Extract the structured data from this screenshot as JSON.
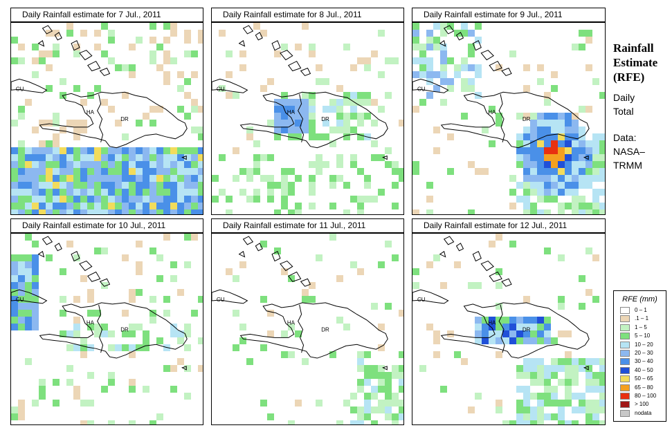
{
  "sidebar": {
    "title_lines": [
      "Rainfall",
      "Estimate",
      "(RFE)"
    ],
    "subtitle_lines": [
      "Daily",
      "Total"
    ],
    "source_lines": [
      "Data:",
      "NASA–",
      "TRMM"
    ]
  },
  "legend": {
    "title": "RFE (mm)",
    "items": [
      {
        "label": "0 – 1",
        "color": "#ffffff"
      },
      {
        "label": ".1 – 1",
        "color": "#ecd6b6"
      },
      {
        "label": "1 – 5",
        "color": "#c2f2c2"
      },
      {
        "label": "5 – 10",
        "color": "#7ee07e"
      },
      {
        "label": "10 – 20",
        "color": "#b6e4f4"
      },
      {
        "label": "20 – 30",
        "color": "#8cb8f0"
      },
      {
        "label": "30 – 40",
        "color": "#4a90e8"
      },
      {
        "label": "40 – 50",
        "color": "#2050d8"
      },
      {
        "label": "50 – 65",
        "color": "#f2dc5c"
      },
      {
        "label": "65 – 80",
        "color": "#f4a020"
      },
      {
        "label": "80 – 100",
        "color": "#e83010"
      },
      {
        "label": "> 100",
        "color": "#a01818"
      },
      {
        "label": "nodata",
        "color": "#c8c8c8"
      }
    ]
  },
  "map_labels": {
    "cuba": "CU",
    "haiti": "HA",
    "dr": "DR"
  },
  "panels": [
    {
      "title": "Daily Rainfall estimate for  7 Jul., 2011",
      "intensity": "moderate-south"
    },
    {
      "title": "Daily Rainfall estimate for  8 Jul., 2011",
      "intensity": "haiti"
    },
    {
      "title": "Daily Rainfall estimate for  9 Jul., 2011",
      "intensity": "heavy-east"
    },
    {
      "title": "Daily Rainfall estimate for  10 Jul., 2011",
      "intensity": "light-west"
    },
    {
      "title": "Daily Rainfall estimate for  11 Jul., 2011",
      "intensity": "light"
    },
    {
      "title": "Daily Rainfall estimate for  12 Jul., 2011",
      "intensity": "moderate-central"
    }
  ]
}
